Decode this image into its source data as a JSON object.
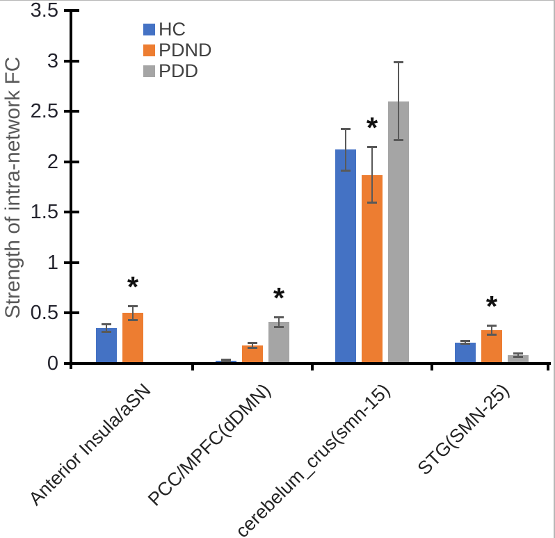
{
  "chart_data": {
    "type": "bar",
    "title": "",
    "xlabel": "",
    "ylabel": "Strength of intra-network FC",
    "ylim": [
      0,
      3.5
    ],
    "grid": false,
    "legend_position": "top-left-inside",
    "yticks": [
      0,
      0.5,
      1,
      1.5,
      2,
      2.5,
      3,
      3.5
    ],
    "ytick_labels": [
      "0",
      "0.5",
      "1",
      "1.5",
      "2",
      "2.5",
      "3",
      "3.5"
    ],
    "categories": [
      "Anterior Insula/aSN",
      "PCC/MPFC(dDMN)",
      "cerebelum_crus(smn-15)",
      "STG(SMN-25)"
    ],
    "series": [
      {
        "name": "HC",
        "color": "#4472C4",
        "values": [
          0.35,
          0.03,
          2.12,
          0.21
        ],
        "errors": [
          0.04,
          0.01,
          0.21,
          0.02
        ],
        "significant": [
          false,
          false,
          false,
          false
        ]
      },
      {
        "name": "PDND",
        "color": "#ED7D31",
        "values": [
          0.5,
          0.18,
          1.87,
          0.33
        ],
        "errors": [
          0.07,
          0.03,
          0.28,
          0.05
        ],
        "significant": [
          true,
          false,
          true,
          true
        ]
      },
      {
        "name": "PDD",
        "color": "#A5A5A5",
        "values": [
          null,
          0.41,
          2.6,
          0.08
        ],
        "errors": [
          null,
          0.05,
          0.39,
          0.02
        ],
        "significant": [
          false,
          true,
          false,
          false
        ]
      }
    ],
    "significance_symbol": "*",
    "error_bar_color": "#595959",
    "axis_color": "#000000",
    "tick_label_color": "#24242e",
    "ylabel_color": "#595959",
    "legend_text_color": "#404040"
  }
}
